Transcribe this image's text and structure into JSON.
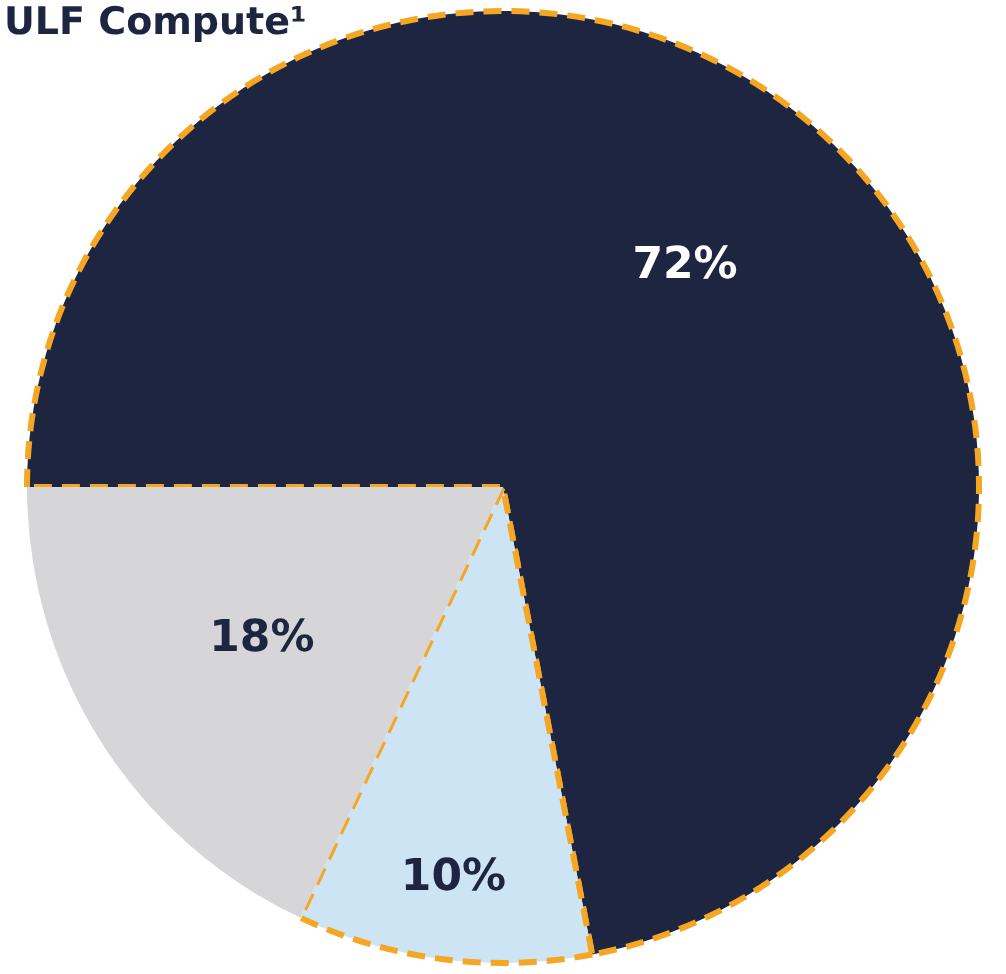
{
  "chart_data": {
    "type": "pie",
    "title": "ULF Compute¹",
    "categories": [
      null,
      null,
      null
    ],
    "values": [
      72,
      10,
      18
    ],
    "colors": [
      "#1e2540",
      "#cde4f5",
      "#d6d6d9"
    ],
    "value_labels": [
      "72%",
      "10%",
      "18%"
    ]
  }
}
